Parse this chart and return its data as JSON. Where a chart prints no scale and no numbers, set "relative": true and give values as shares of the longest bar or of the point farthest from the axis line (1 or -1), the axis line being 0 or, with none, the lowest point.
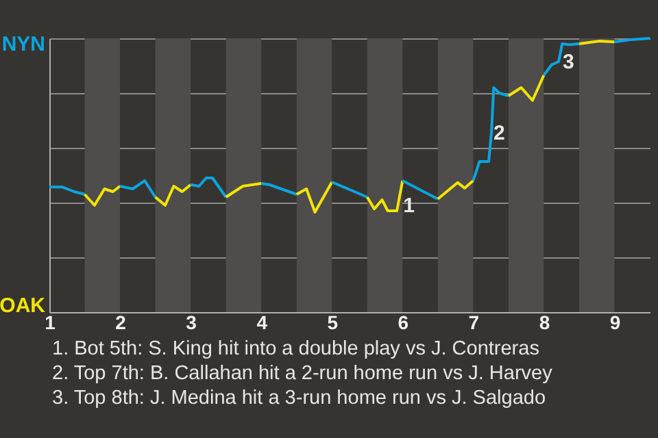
{
  "chart_data": {
    "type": "line",
    "relative": true,
    "xlim": [
      1,
      9.5
    ],
    "xticks": [
      1,
      2,
      3,
      4,
      5,
      6,
      7,
      8,
      9
    ],
    "grid": "y",
    "series": [
      {
        "color": "#0aa5e0",
        "x": [
          1,
          1.18,
          1.35,
          1.5
        ],
        "values": [
          0.457,
          0.457,
          0.44,
          0.43
        ]
      },
      {
        "color": "#f5e400",
        "x": [
          1.5,
          1.64,
          1.78,
          1.9,
          2
        ],
        "values": [
          0.43,
          0.39,
          0.45,
          0.44,
          0.46
        ]
      },
      {
        "color": "#0aa5e0",
        "x": [
          2,
          2.18,
          2.35,
          2.5
        ],
        "values": [
          0.46,
          0.45,
          0.48,
          0.42
        ]
      },
      {
        "color": "#f5e400",
        "x": [
          2.5,
          2.64,
          2.76,
          2.88,
          3
        ],
        "values": [
          0.42,
          0.39,
          0.46,
          0.44,
          0.465
        ]
      },
      {
        "color": "#0aa5e0",
        "x": [
          3,
          3.12,
          3.22,
          3.31,
          3.5
        ],
        "values": [
          0.465,
          0.46,
          0.49,
          0.49,
          0.42
        ]
      },
      {
        "color": "#f5e400",
        "x": [
          3.5,
          3.74,
          4
        ],
        "values": [
          0.42,
          0.46,
          0.47
        ]
      },
      {
        "color": "#0aa5e0",
        "x": [
          4,
          4.12,
          4.5
        ],
        "values": [
          0.47,
          0.465,
          0.43
        ]
      },
      {
        "color": "#f5e400",
        "x": [
          4.5,
          4.64,
          4.76,
          5
        ],
        "values": [
          0.43,
          0.45,
          0.365,
          0.475
        ]
      },
      {
        "color": "#0aa5e0",
        "x": [
          5,
          5.5
        ],
        "values": [
          0.475,
          0.42
        ]
      },
      {
        "color": "#f5e400",
        "x": [
          5.5,
          5.6,
          5.71,
          5.79,
          5.92,
          6
        ],
        "values": [
          0.42,
          0.377,
          0.41,
          0.37,
          0.37,
          0.48
        ]
      },
      {
        "color": "#0aa5e0",
        "x": [
          6,
          6.5
        ],
        "values": [
          0.48,
          0.413
        ]
      },
      {
        "color": "#f5e400",
        "x": [
          6.5,
          6.78,
          6.88,
          7
        ],
        "values": [
          0.413,
          0.473,
          0.453,
          0.48
        ]
      },
      {
        "color": "#0aa5e0",
        "x": [
          7,
          7.09,
          7.22,
          7.26,
          7.29,
          7.37,
          7.5
        ],
        "values": [
          0.48,
          0.55,
          0.55,
          0.66,
          0.82,
          0.8,
          0.79
        ]
      },
      {
        "color": "#f5e400",
        "x": [
          7.5,
          7.68,
          7.84,
          8
        ],
        "values": [
          0.79,
          0.82,
          0.773,
          0.865
        ]
      },
      {
        "color": "#0aa5e0",
        "x": [
          8,
          8.11,
          8.21,
          8.26,
          8.36,
          8.5
        ],
        "values": [
          0.865,
          0.903,
          0.915,
          0.98,
          0.977,
          0.98
        ]
      },
      {
        "color": "#f5e400",
        "x": [
          8.5,
          8.79,
          9
        ],
        "values": [
          0.98,
          0.99,
          0.987
        ]
      },
      {
        "color": "#0aa5e0",
        "x": [
          9,
          9.23,
          9.5
        ],
        "values": [
          0.987,
          0.995,
          1
        ]
      }
    ],
    "bands": [
      {
        "axis": "x",
        "from": 1.5,
        "to": 2,
        "color": "#4e4d4b"
      },
      {
        "axis": "x",
        "from": 2.5,
        "to": 3,
        "color": "#4e4d4b"
      },
      {
        "axis": "x",
        "from": 3.5,
        "to": 4,
        "color": "#4e4d4b"
      },
      {
        "axis": "x",
        "from": 4.5,
        "to": 5,
        "color": "#4e4d4b"
      },
      {
        "axis": "x",
        "from": 5.5,
        "to": 6,
        "color": "#4e4d4b"
      },
      {
        "axis": "x",
        "from": 6.5,
        "to": 7,
        "color": "#4e4d4b"
      },
      {
        "axis": "x",
        "from": 7.5,
        "to": 8,
        "color": "#4e4d4b"
      },
      {
        "axis": "x",
        "from": 8.5,
        "to": 9,
        "color": "#4e4d4b"
      }
    ],
    "annotations": [
      "NYN",
      "OAK",
      {
        "text": "1",
        "x": 5.95,
        "y": 0.455
      },
      {
        "text": "2",
        "x": 7.23,
        "y": 0.72
      },
      {
        "text": "3",
        "x": 8.21,
        "y": 0.98
      },
      "1. Bot 5th: S. King hit into a double play vs J. Contreras",
      "2. Top 7th: B. Callahan hit a 2-run home run vs J. Harvey",
      "3. Top 8th: J. Medina hit a 3-run home run vs J. Salgado"
    ]
  }
}
